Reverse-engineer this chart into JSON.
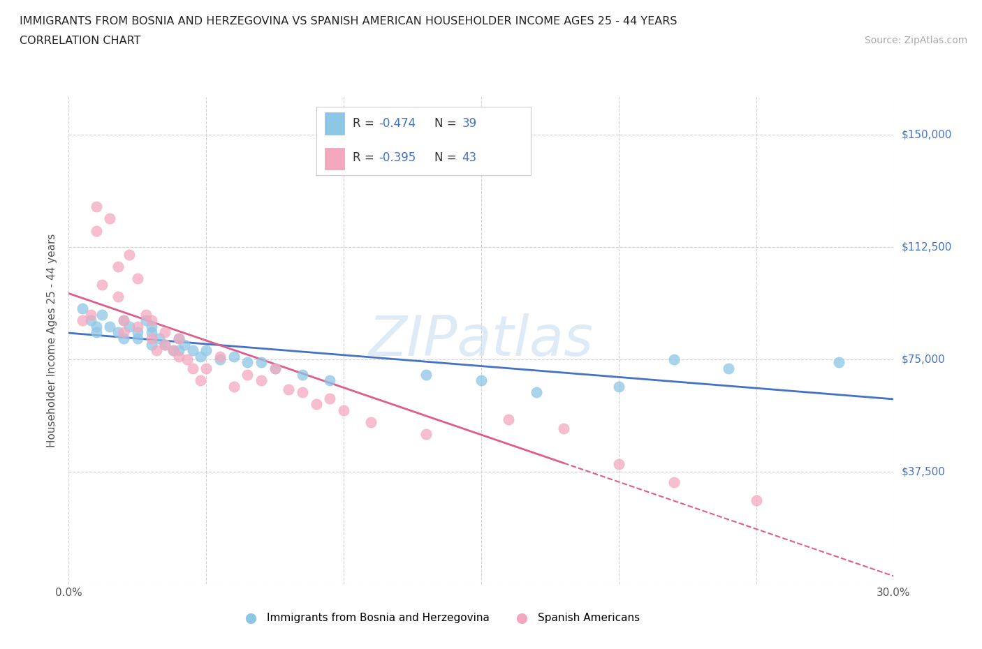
{
  "title": "IMMIGRANTS FROM BOSNIA AND HERZEGOVINA VS SPANISH AMERICAN HOUSEHOLDER INCOME AGES 25 - 44 YEARS",
  "subtitle": "CORRELATION CHART",
  "source": "Source: ZipAtlas.com",
  "ylabel": "Householder Income Ages 25 - 44 years",
  "x_min": 0.0,
  "x_max": 0.3,
  "y_min": 0,
  "y_max": 162500,
  "x_ticks": [
    0.0,
    0.05,
    0.1,
    0.15,
    0.2,
    0.25,
    0.3
  ],
  "y_ticks": [
    0,
    37500,
    75000,
    112500,
    150000
  ],
  "y_tick_labels": [
    "",
    "$37,500",
    "$75,000",
    "$112,500",
    "$150,000"
  ],
  "bosnia_color": "#8ec6e6",
  "spanish_color": "#f4a8be",
  "bosnia_line_color": "#4472c4",
  "spanish_line_color": "#e05c8a",
  "stat_text_color": "#4472c4",
  "bosnia_R": -0.474,
  "bosnia_N": 39,
  "spanish_R": -0.395,
  "spanish_N": 43,
  "watermark_text": "ZIPatlas",
  "legend_bosnia": "Immigrants from Bosnia and Herzegovina",
  "legend_spanish": "Spanish Americans",
  "background_color": "#ffffff",
  "grid_color": "#d0d0d0",
  "bosnia_scatter_x": [
    0.005,
    0.008,
    0.01,
    0.01,
    0.012,
    0.015,
    0.018,
    0.02,
    0.02,
    0.022,
    0.025,
    0.025,
    0.028,
    0.03,
    0.03,
    0.03,
    0.033,
    0.035,
    0.038,
    0.04,
    0.04,
    0.042,
    0.045,
    0.048,
    0.05,
    0.055,
    0.06,
    0.065,
    0.07,
    0.075,
    0.085,
    0.095,
    0.13,
    0.15,
    0.17,
    0.2,
    0.22,
    0.24,
    0.28
  ],
  "bosnia_scatter_y": [
    92000,
    88000,
    86000,
    84000,
    90000,
    86000,
    84000,
    88000,
    82000,
    86000,
    84000,
    82000,
    88000,
    86000,
    84000,
    80000,
    82000,
    80000,
    78000,
    82000,
    78000,
    80000,
    78000,
    76000,
    78000,
    75000,
    76000,
    74000,
    74000,
    72000,
    70000,
    68000,
    70000,
    68000,
    64000,
    66000,
    75000,
    72000,
    74000
  ],
  "spanish_scatter_x": [
    0.005,
    0.008,
    0.01,
    0.01,
    0.012,
    0.015,
    0.018,
    0.018,
    0.02,
    0.02,
    0.022,
    0.025,
    0.025,
    0.028,
    0.03,
    0.03,
    0.032,
    0.035,
    0.035,
    0.038,
    0.04,
    0.04,
    0.043,
    0.045,
    0.048,
    0.05,
    0.055,
    0.06,
    0.065,
    0.07,
    0.075,
    0.08,
    0.085,
    0.09,
    0.095,
    0.1,
    0.11,
    0.13,
    0.16,
    0.18,
    0.2,
    0.22,
    0.25
  ],
  "spanish_scatter_y": [
    88000,
    90000,
    118000,
    126000,
    100000,
    122000,
    96000,
    106000,
    88000,
    84000,
    110000,
    102000,
    86000,
    90000,
    88000,
    82000,
    78000,
    84000,
    80000,
    78000,
    82000,
    76000,
    75000,
    72000,
    68000,
    72000,
    76000,
    66000,
    70000,
    68000,
    72000,
    65000,
    64000,
    60000,
    62000,
    58000,
    54000,
    50000,
    55000,
    52000,
    40000,
    34000,
    28000
  ]
}
